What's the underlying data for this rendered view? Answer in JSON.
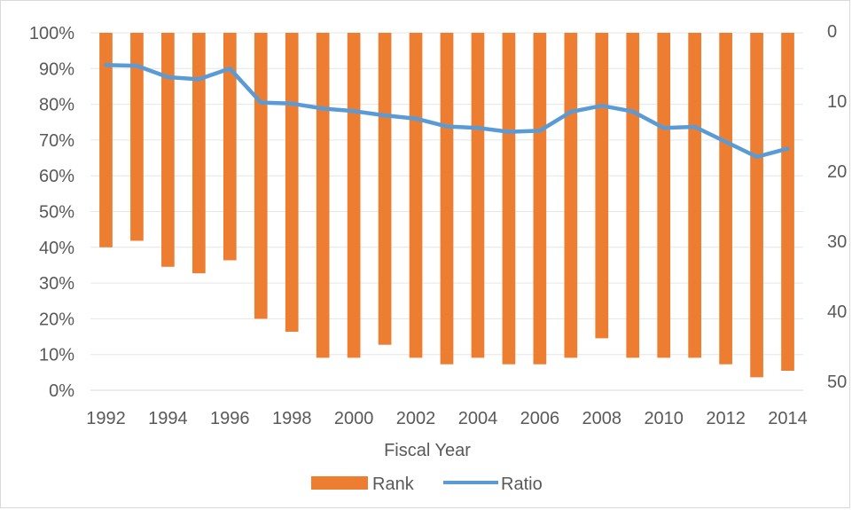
{
  "chart_data": {
    "type": "bar",
    "xlabel": "Fiscal Year",
    "x": [
      1992,
      1993,
      1994,
      1995,
      1996,
      1997,
      1998,
      1999,
      2000,
      2001,
      2002,
      2003,
      2004,
      2005,
      2006,
      2007,
      2008,
      2009,
      2010,
      2011,
      2012,
      2013,
      2014
    ],
    "x_tick_labels": [
      "1992",
      "1994",
      "1996",
      "1998",
      "2000",
      "2002",
      "2004",
      "2006",
      "2008",
      "2010",
      "2012",
      "2014"
    ],
    "y_left": {
      "ylim": [
        0,
        100
      ],
      "tick_labels": [
        "100%",
        "90%",
        "80%",
        "70%",
        "60%",
        "50%",
        "40%",
        "30%",
        "20%",
        "10%",
        "0%"
      ]
    },
    "y_right": {
      "ylim": [
        0,
        50
      ],
      "inverted": true,
      "tick_labels": [
        "0",
        "10",
        "20",
        "30",
        "40",
        "50"
      ]
    },
    "series": [
      {
        "name": "Rank",
        "type": "bar",
        "axis": "right",
        "color": "#ed7d31",
        "values": [
          33,
          32,
          36,
          37,
          35,
          44,
          46,
          50,
          50,
          48,
          50,
          51,
          50,
          51,
          51,
          50,
          47,
          50,
          50,
          50,
          51,
          53,
          52
        ]
      },
      {
        "name": "Ratio",
        "type": "line",
        "axis": "left",
        "color": "#5b9bd5",
        "values": [
          91,
          90.8,
          87.6,
          87,
          90,
          80.5,
          80.2,
          78.8,
          78.1,
          76.9,
          76,
          73.8,
          73.4,
          72.3,
          72.6,
          77.9,
          79.6,
          78,
          73.4,
          73.7,
          69.5,
          65.3,
          67.6
        ]
      }
    ],
    "legend": {
      "position": "bottom",
      "entries": [
        "Rank",
        "Ratio"
      ]
    },
    "grid": true
  }
}
